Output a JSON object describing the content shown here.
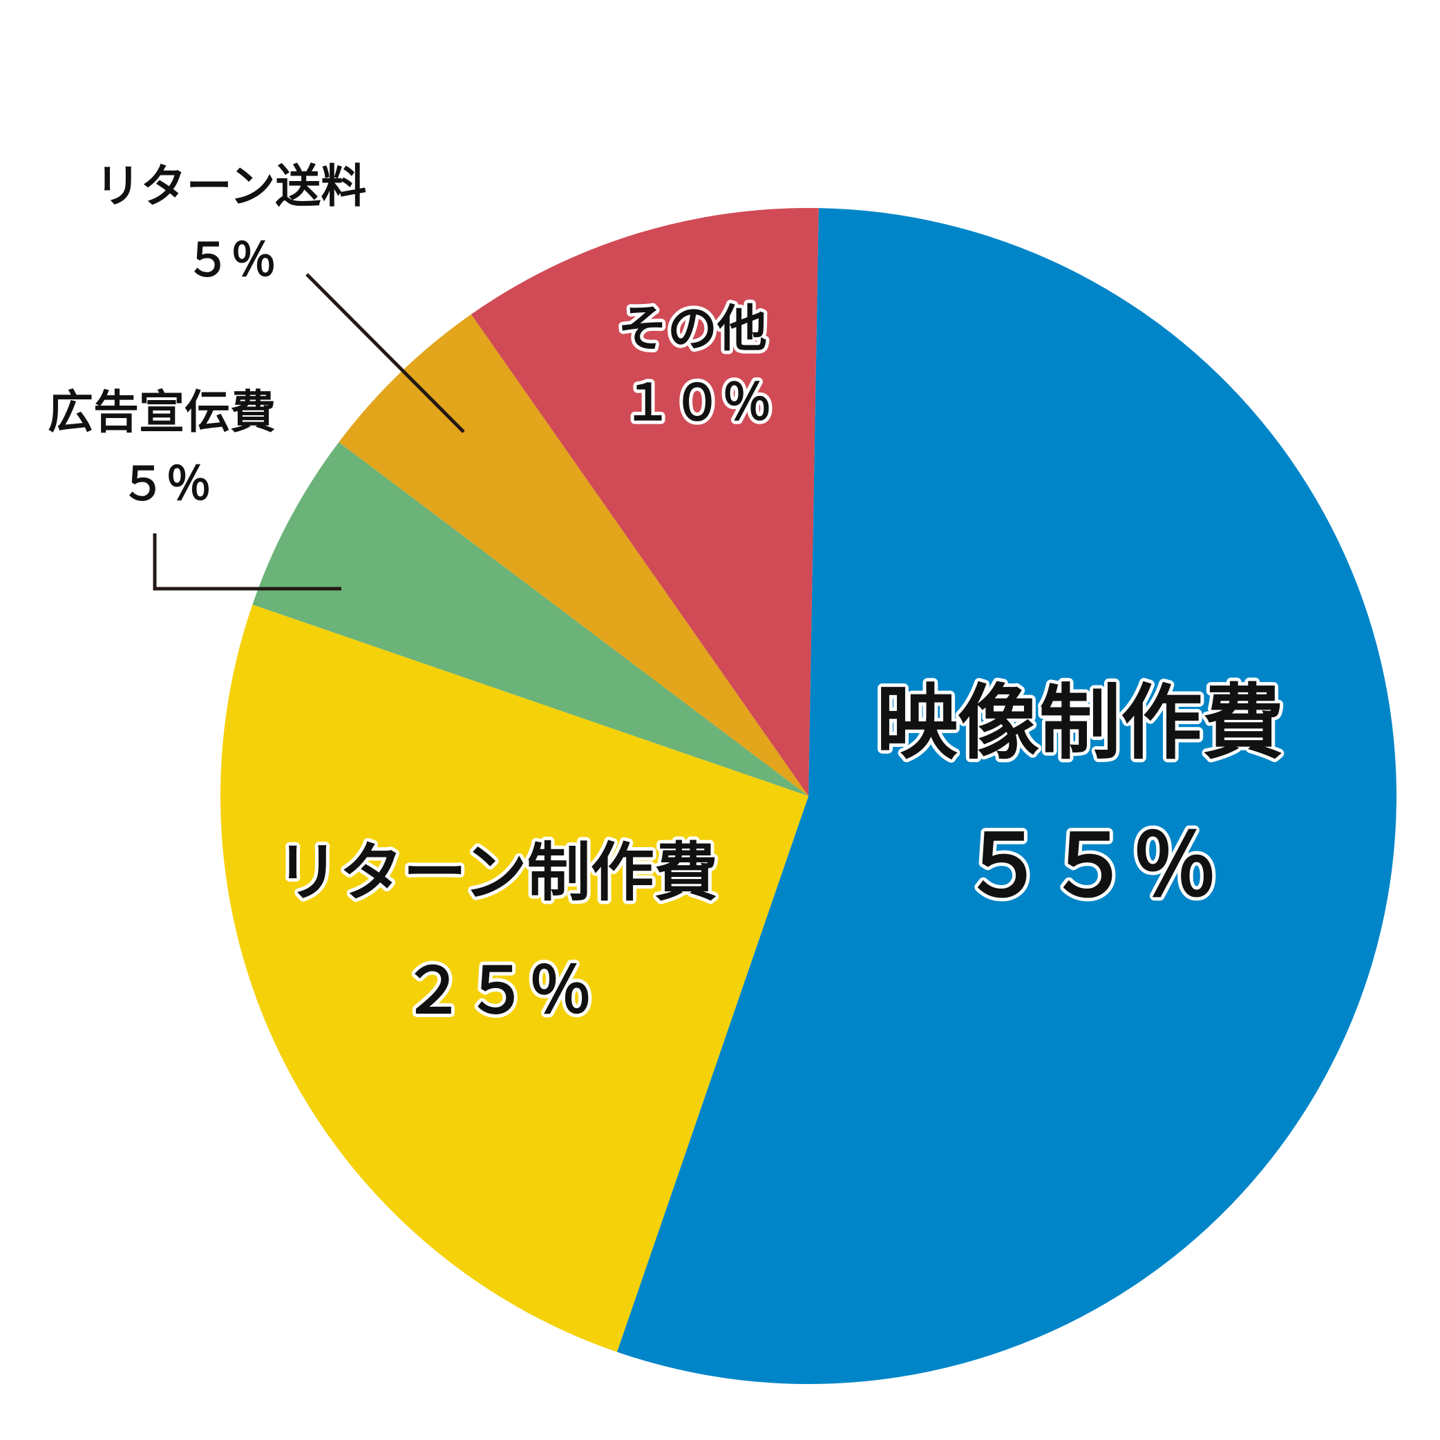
{
  "chart_data": {
    "type": "pie",
    "categories": [
      "映像制作費",
      "リターン制作費",
      "広告宣伝費",
      "リターン送料",
      "その他"
    ],
    "values": [
      55,
      25,
      5,
      5,
      10
    ],
    "value_labels": [
      "５５％",
      "２５％",
      "５％",
      "５％",
      "１０％"
    ],
    "colors": [
      "#0085c8",
      "#f5d10a",
      "#6bb378",
      "#e2a51c",
      "#d04b55"
    ]
  }
}
